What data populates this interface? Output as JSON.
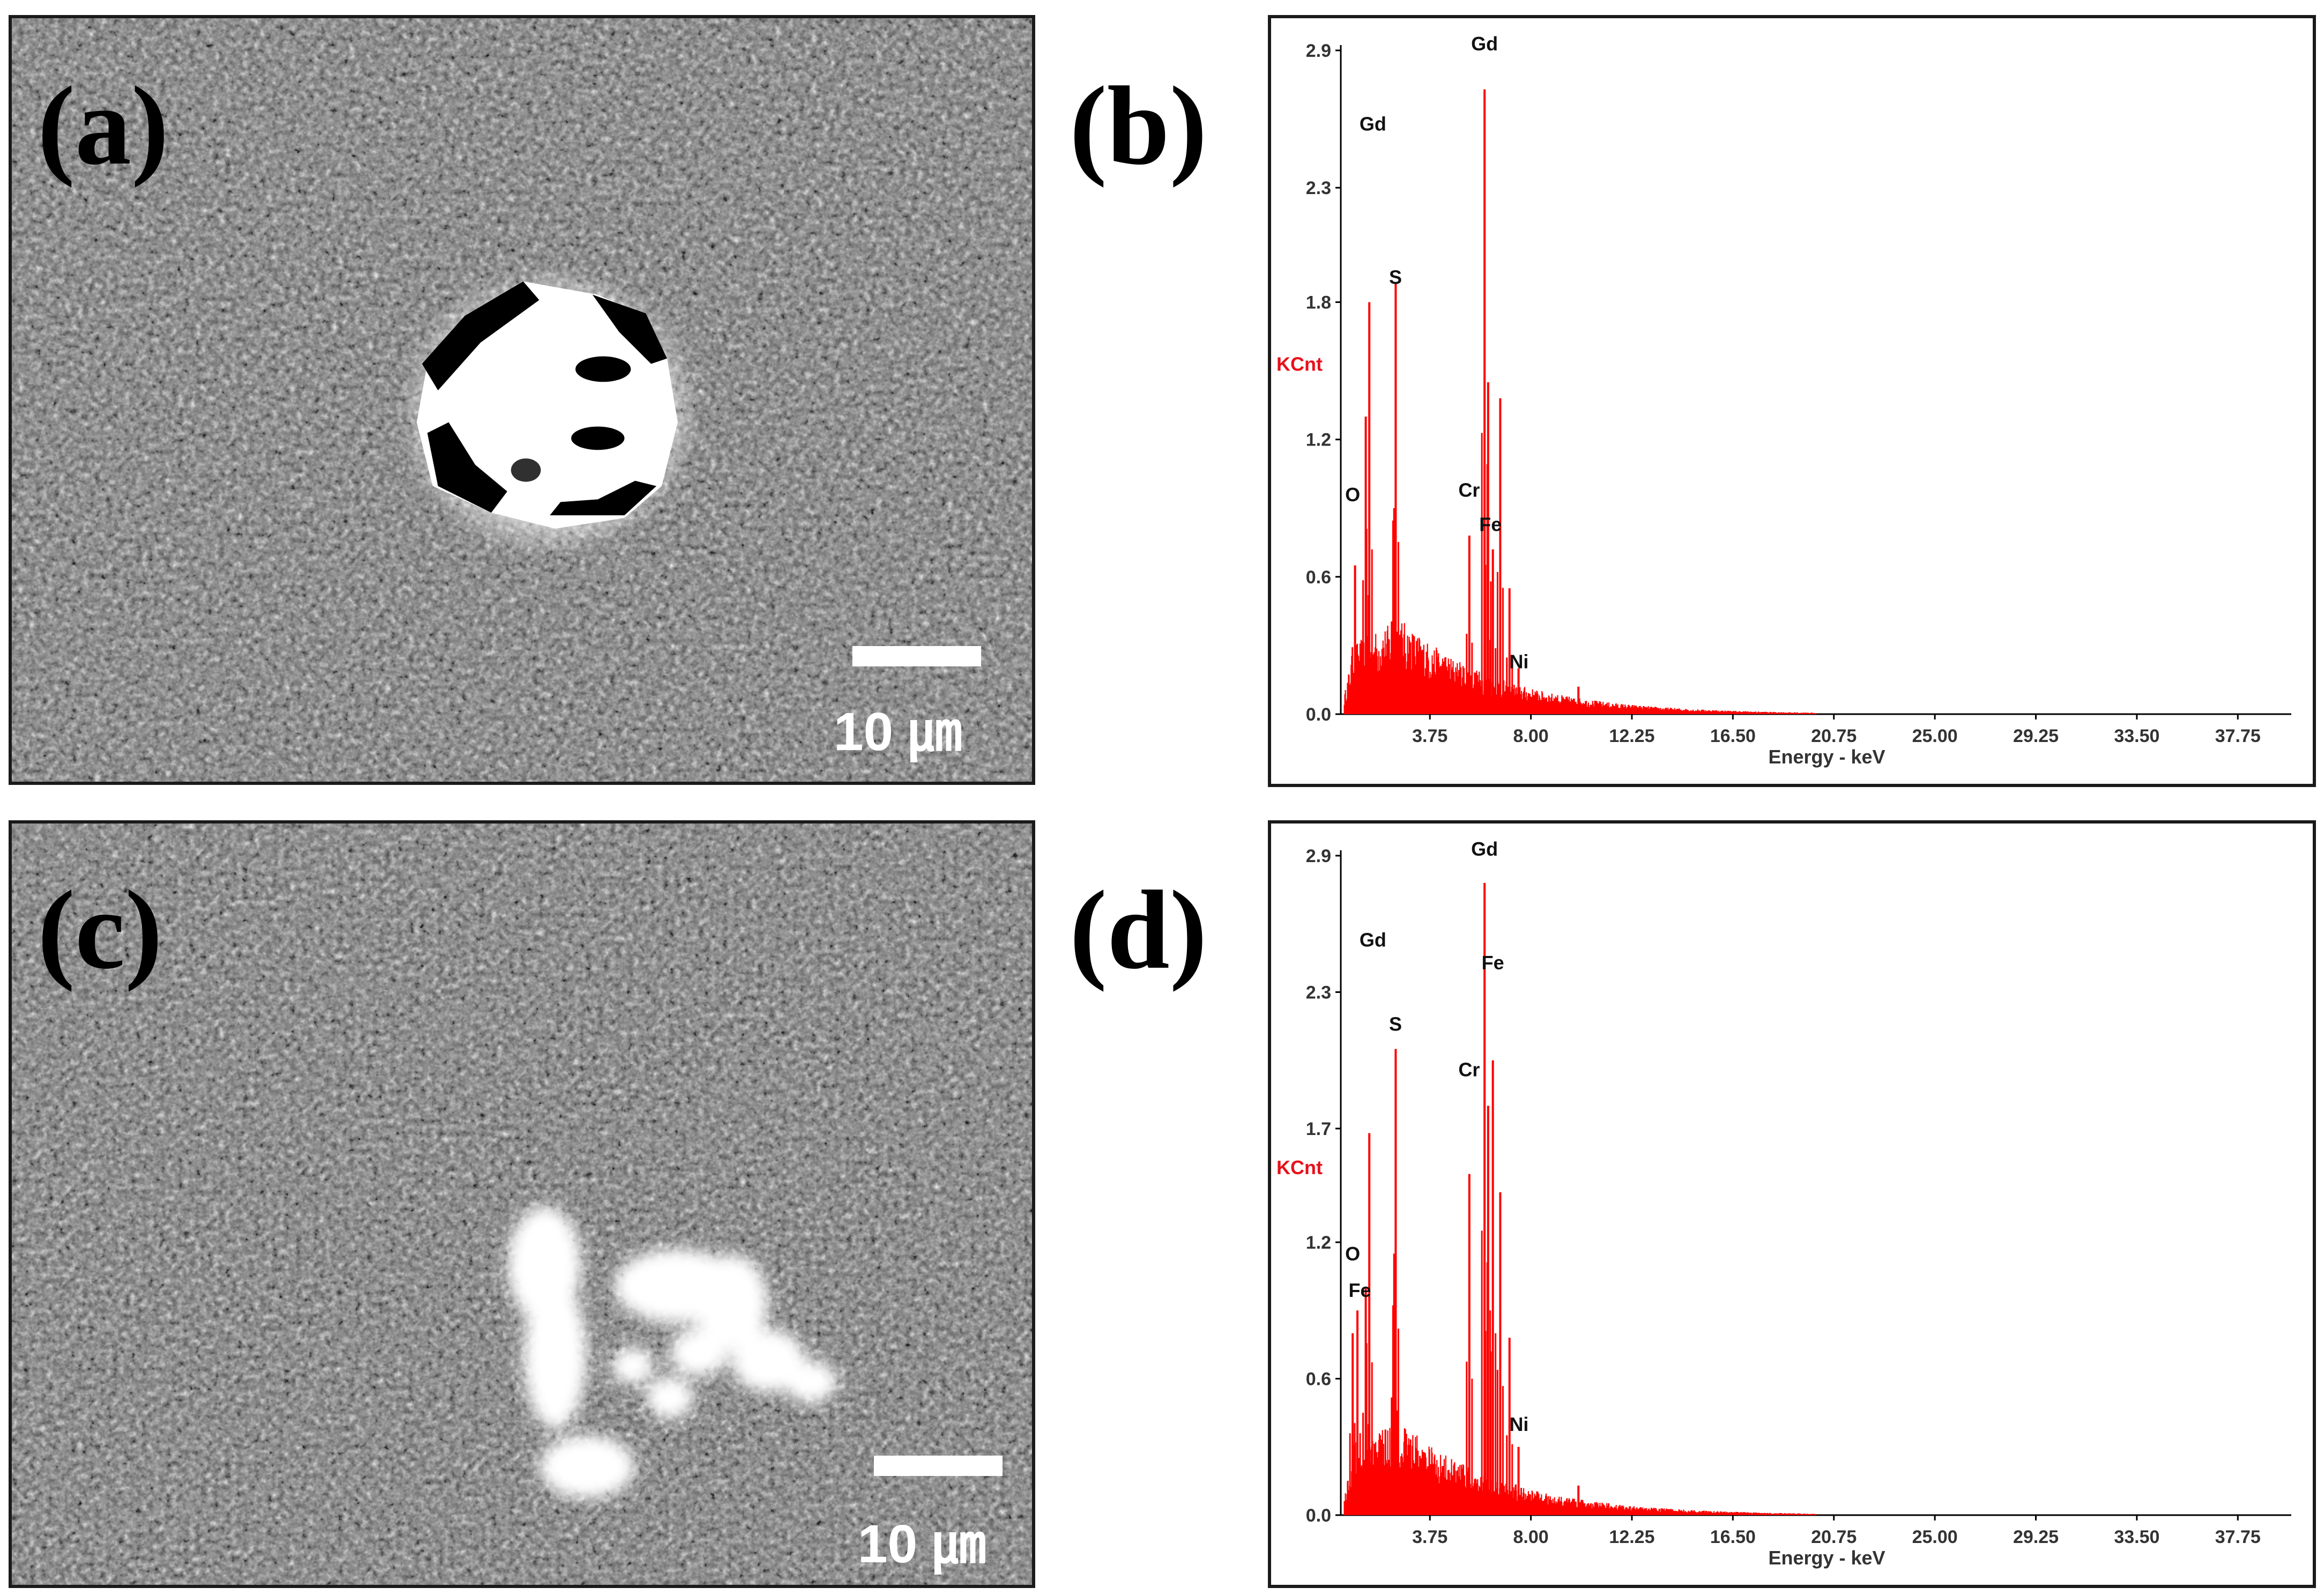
{
  "panels": {
    "a": {
      "label": "(a)",
      "scale_text": "10 ㎛"
    },
    "b": {
      "label": "(b)"
    },
    "c": {
      "label": "(c)",
      "scale_text": "10 ㎛"
    },
    "d": {
      "label": "(d)"
    }
  },
  "colors": {
    "spectrum": "#ff0000",
    "ylabel": "#e8101b",
    "sem_bg": "#6e6e6e"
  },
  "chart_data": [
    {
      "type": "bar",
      "panel": "b",
      "xlabel": "Energy - keV",
      "ylabel": "KCnt",
      "xlim": [
        0,
        40
      ],
      "ylim": [
        0,
        2.9
      ],
      "xticks": [
        "3.75",
        "8.00",
        "12.25",
        "16.50",
        "20.75",
        "25.00",
        "29.25",
        "33.50",
        "37.75"
      ],
      "yticks": [
        "0.0",
        "0.6",
        "1.2",
        "1.8",
        "2.3",
        "2.9"
      ],
      "peaks": [
        {
          "energy": 0.6,
          "height": 0.65
        },
        {
          "energy": 1.05,
          "height": 1.3
        },
        {
          "energy": 1.2,
          "height": 1.8
        },
        {
          "energy": 2.25,
          "height": 0.9
        },
        {
          "energy": 2.31,
          "height": 1.88
        },
        {
          "energy": 5.41,
          "height": 0.78
        },
        {
          "energy": 6.05,
          "height": 2.73
        },
        {
          "energy": 6.2,
          "height": 1.45
        },
        {
          "energy": 6.4,
          "height": 0.72
        },
        {
          "energy": 6.71,
          "height": 1.38
        },
        {
          "energy": 7.1,
          "height": 0.55
        },
        {
          "energy": 7.48,
          "height": 0.2
        },
        {
          "energy": 10.0,
          "height": 0.12
        }
      ],
      "annotations": [
        {
          "text": "Gd",
          "energy": 6.05,
          "kcnt": 2.9
        },
        {
          "text": "Gd",
          "energy": 1.35,
          "kcnt": 2.55
        },
        {
          "text": "S",
          "energy": 2.3,
          "kcnt": 1.88
        },
        {
          "text": "O",
          "energy": 0.5,
          "kcnt": 0.93
        },
        {
          "text": "Cr",
          "energy": 5.4,
          "kcnt": 0.95
        },
        {
          "text": "Fe",
          "energy": 6.3,
          "kcnt": 0.8
        },
        {
          "text": "Ni",
          "energy": 7.5,
          "kcnt": 0.2
        }
      ]
    },
    {
      "type": "bar",
      "panel": "d",
      "xlabel": "Energy - keV",
      "ylabel": "KCnt",
      "xlim": [
        0,
        40
      ],
      "ylim": [
        0,
        2.9
      ],
      "xticks": [
        "3.75",
        "8.00",
        "12.25",
        "16.50",
        "20.75",
        "25.00",
        "29.25",
        "33.50",
        "37.75"
      ],
      "yticks": [
        "0.0",
        "0.6",
        "1.2",
        "1.7",
        "2.3",
        "2.9"
      ],
      "peaks": [
        {
          "energy": 0.5,
          "height": 0.8
        },
        {
          "energy": 0.7,
          "height": 0.9
        },
        {
          "energy": 1.05,
          "height": 1.0
        },
        {
          "energy": 1.2,
          "height": 1.68
        },
        {
          "energy": 2.25,
          "height": 1.15
        },
        {
          "energy": 2.31,
          "height": 2.05
        },
        {
          "energy": 5.41,
          "height": 1.5
        },
        {
          "energy": 6.05,
          "height": 2.78
        },
        {
          "energy": 6.2,
          "height": 1.8
        },
        {
          "energy": 6.4,
          "height": 2.0
        },
        {
          "energy": 6.71,
          "height": 1.42
        },
        {
          "energy": 7.1,
          "height": 0.78
        },
        {
          "energy": 7.48,
          "height": 0.3
        },
        {
          "energy": 10.0,
          "height": 0.13
        }
      ],
      "annotations": [
        {
          "text": "Gd",
          "energy": 6.05,
          "kcnt": 2.9
        },
        {
          "text": "Gd",
          "energy": 1.35,
          "kcnt": 2.5
        },
        {
          "text": "Fe",
          "energy": 6.4,
          "kcnt": 2.4
        },
        {
          "text": "S",
          "energy": 2.3,
          "kcnt": 2.13
        },
        {
          "text": "Cr",
          "energy": 5.4,
          "kcnt": 1.93
        },
        {
          "text": "O",
          "energy": 0.5,
          "kcnt": 1.12
        },
        {
          "text": "Fe",
          "energy": 0.8,
          "kcnt": 0.96
        },
        {
          "text": "Ni",
          "energy": 7.5,
          "kcnt": 0.37
        }
      ]
    }
  ]
}
